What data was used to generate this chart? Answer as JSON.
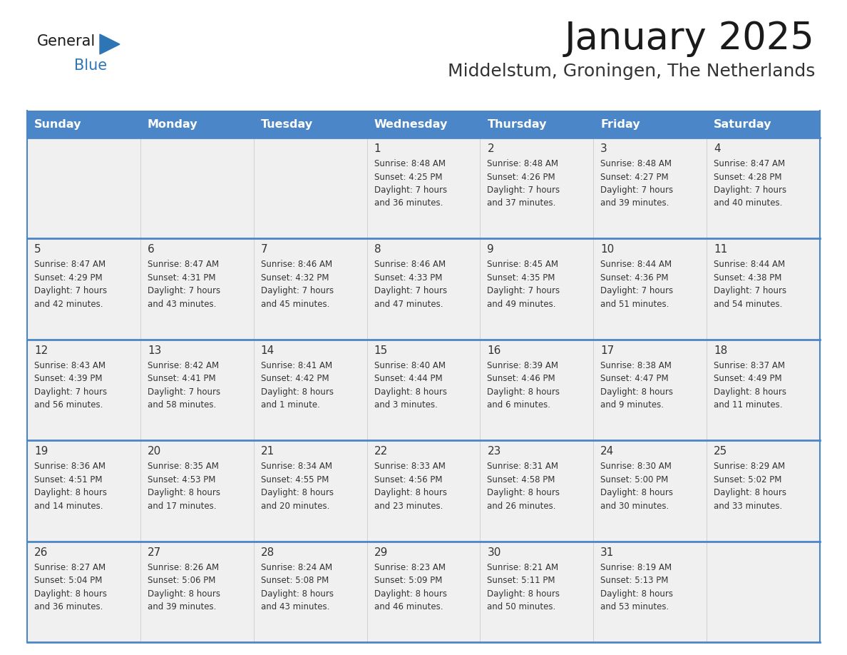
{
  "title": "January 2025",
  "subtitle": "Middelstum, Groningen, The Netherlands",
  "days_of_week": [
    "Sunday",
    "Monday",
    "Tuesday",
    "Wednesday",
    "Thursday",
    "Friday",
    "Saturday"
  ],
  "header_bg": "#4A86C8",
  "header_text": "#FFFFFF",
  "row_bg": "#F0F0F0",
  "row_separator": "#4A86C8",
  "day_number_color": "#333333",
  "cell_text_color": "#333333",
  "title_color": "#1a1a1a",
  "subtitle_color": "#333333",
  "logo_general_color": "#1a1a1a",
  "logo_blue_color": "#2E75B6",
  "weeks": [
    [
      {
        "day": "",
        "info": ""
      },
      {
        "day": "",
        "info": ""
      },
      {
        "day": "",
        "info": ""
      },
      {
        "day": "1",
        "info": "Sunrise: 8:48 AM\nSunset: 4:25 PM\nDaylight: 7 hours\nand 36 minutes."
      },
      {
        "day": "2",
        "info": "Sunrise: 8:48 AM\nSunset: 4:26 PM\nDaylight: 7 hours\nand 37 minutes."
      },
      {
        "day": "3",
        "info": "Sunrise: 8:48 AM\nSunset: 4:27 PM\nDaylight: 7 hours\nand 39 minutes."
      },
      {
        "day": "4",
        "info": "Sunrise: 8:47 AM\nSunset: 4:28 PM\nDaylight: 7 hours\nand 40 minutes."
      }
    ],
    [
      {
        "day": "5",
        "info": "Sunrise: 8:47 AM\nSunset: 4:29 PM\nDaylight: 7 hours\nand 42 minutes."
      },
      {
        "day": "6",
        "info": "Sunrise: 8:47 AM\nSunset: 4:31 PM\nDaylight: 7 hours\nand 43 minutes."
      },
      {
        "day": "7",
        "info": "Sunrise: 8:46 AM\nSunset: 4:32 PM\nDaylight: 7 hours\nand 45 minutes."
      },
      {
        "day": "8",
        "info": "Sunrise: 8:46 AM\nSunset: 4:33 PM\nDaylight: 7 hours\nand 47 minutes."
      },
      {
        "day": "9",
        "info": "Sunrise: 8:45 AM\nSunset: 4:35 PM\nDaylight: 7 hours\nand 49 minutes."
      },
      {
        "day": "10",
        "info": "Sunrise: 8:44 AM\nSunset: 4:36 PM\nDaylight: 7 hours\nand 51 minutes."
      },
      {
        "day": "11",
        "info": "Sunrise: 8:44 AM\nSunset: 4:38 PM\nDaylight: 7 hours\nand 54 minutes."
      }
    ],
    [
      {
        "day": "12",
        "info": "Sunrise: 8:43 AM\nSunset: 4:39 PM\nDaylight: 7 hours\nand 56 minutes."
      },
      {
        "day": "13",
        "info": "Sunrise: 8:42 AM\nSunset: 4:41 PM\nDaylight: 7 hours\nand 58 minutes."
      },
      {
        "day": "14",
        "info": "Sunrise: 8:41 AM\nSunset: 4:42 PM\nDaylight: 8 hours\nand 1 minute."
      },
      {
        "day": "15",
        "info": "Sunrise: 8:40 AM\nSunset: 4:44 PM\nDaylight: 8 hours\nand 3 minutes."
      },
      {
        "day": "16",
        "info": "Sunrise: 8:39 AM\nSunset: 4:46 PM\nDaylight: 8 hours\nand 6 minutes."
      },
      {
        "day": "17",
        "info": "Sunrise: 8:38 AM\nSunset: 4:47 PM\nDaylight: 8 hours\nand 9 minutes."
      },
      {
        "day": "18",
        "info": "Sunrise: 8:37 AM\nSunset: 4:49 PM\nDaylight: 8 hours\nand 11 minutes."
      }
    ],
    [
      {
        "day": "19",
        "info": "Sunrise: 8:36 AM\nSunset: 4:51 PM\nDaylight: 8 hours\nand 14 minutes."
      },
      {
        "day": "20",
        "info": "Sunrise: 8:35 AM\nSunset: 4:53 PM\nDaylight: 8 hours\nand 17 minutes."
      },
      {
        "day": "21",
        "info": "Sunrise: 8:34 AM\nSunset: 4:55 PM\nDaylight: 8 hours\nand 20 minutes."
      },
      {
        "day": "22",
        "info": "Sunrise: 8:33 AM\nSunset: 4:56 PM\nDaylight: 8 hours\nand 23 minutes."
      },
      {
        "day": "23",
        "info": "Sunrise: 8:31 AM\nSunset: 4:58 PM\nDaylight: 8 hours\nand 26 minutes."
      },
      {
        "day": "24",
        "info": "Sunrise: 8:30 AM\nSunset: 5:00 PM\nDaylight: 8 hours\nand 30 minutes."
      },
      {
        "day": "25",
        "info": "Sunrise: 8:29 AM\nSunset: 5:02 PM\nDaylight: 8 hours\nand 33 minutes."
      }
    ],
    [
      {
        "day": "26",
        "info": "Sunrise: 8:27 AM\nSunset: 5:04 PM\nDaylight: 8 hours\nand 36 minutes."
      },
      {
        "day": "27",
        "info": "Sunrise: 8:26 AM\nSunset: 5:06 PM\nDaylight: 8 hours\nand 39 minutes."
      },
      {
        "day": "28",
        "info": "Sunrise: 8:24 AM\nSunset: 5:08 PM\nDaylight: 8 hours\nand 43 minutes."
      },
      {
        "day": "29",
        "info": "Sunrise: 8:23 AM\nSunset: 5:09 PM\nDaylight: 8 hours\nand 46 minutes."
      },
      {
        "day": "30",
        "info": "Sunrise: 8:21 AM\nSunset: 5:11 PM\nDaylight: 8 hours\nand 50 minutes."
      },
      {
        "day": "31",
        "info": "Sunrise: 8:19 AM\nSunset: 5:13 PM\nDaylight: 8 hours\nand 53 minutes."
      },
      {
        "day": "",
        "info": ""
      }
    ]
  ]
}
